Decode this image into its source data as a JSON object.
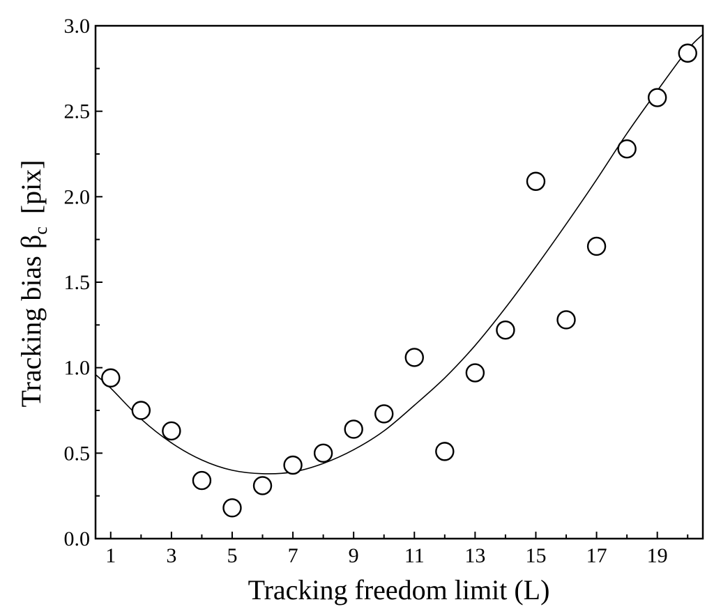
{
  "chart_data": {
    "type": "scatter",
    "xlabel": "Tracking freedom limit (L)",
    "ylabel_prefix": "Tracking bias β",
    "ylabel_subscript": "c",
    "ylabel_suffix": "[pix]",
    "xlim": [
      0.5,
      20.5
    ],
    "ylim": [
      0.0,
      3.0
    ],
    "xticks": [
      1,
      3,
      5,
      7,
      9,
      11,
      13,
      15,
      17,
      19
    ],
    "xtick_labels": [
      "1",
      "3",
      "5",
      "7",
      "9",
      "11",
      "13",
      "15",
      "17",
      "19"
    ],
    "yticks": [
      0.0,
      0.5,
      1.0,
      1.5,
      2.0,
      2.5,
      3.0
    ],
    "ytick_labels": [
      "0.0",
      "0.5",
      "1.0",
      "1.5",
      "2.0",
      "2.5",
      "3.0"
    ],
    "grid": false,
    "series": [
      {
        "kind": "points",
        "marker": "open-circle",
        "x": [
          1,
          2,
          3,
          4,
          5,
          6,
          7,
          8,
          9,
          10,
          11,
          12,
          13,
          14,
          15,
          16,
          17,
          18,
          19,
          20
        ],
        "y": [
          0.94,
          0.75,
          0.63,
          0.34,
          0.18,
          0.31,
          0.43,
          0.5,
          0.64,
          0.73,
          1.06,
          0.51,
          0.97,
          1.22,
          2.09,
          1.28,
          1.71,
          2.28,
          2.58,
          2.84
        ]
      },
      {
        "kind": "fit-curve",
        "x": [
          0.5,
          1,
          2,
          3,
          4,
          5,
          6,
          7,
          8,
          9,
          10,
          11,
          12,
          13,
          14,
          15,
          16,
          17,
          18,
          19,
          20,
          20.5
        ],
        "y": [
          0.96,
          0.88,
          0.7,
          0.56,
          0.46,
          0.4,
          0.38,
          0.39,
          0.44,
          0.52,
          0.63,
          0.78,
          0.94,
          1.13,
          1.35,
          1.59,
          1.84,
          2.1,
          2.37,
          2.62,
          2.86,
          2.95
        ]
      }
    ],
    "colors": {
      "marks": "#000000",
      "background": "#ffffff"
    }
  }
}
